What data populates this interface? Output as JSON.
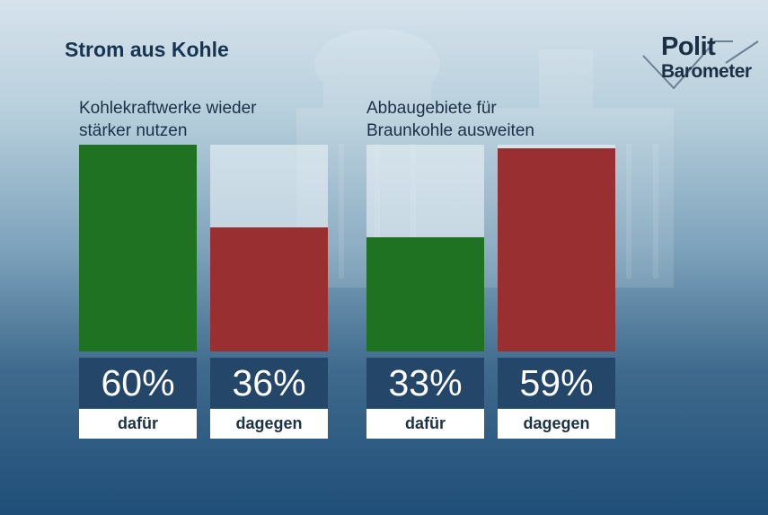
{
  "title": "Strom aus Kohle",
  "logo": {
    "line1": "Polit",
    "line2": "Barometer"
  },
  "colors": {
    "favor": "#1f7222",
    "against": "#9a2f31",
    "label_box": "#244669"
  },
  "chart_data": [
    {
      "type": "bar",
      "title": "Kohlekraftwerke wieder\nstärker nutzen",
      "categories": [
        "dafür",
        "dagegen"
      ],
      "values": [
        60,
        36
      ],
      "value_labels": [
        "60%",
        "36%"
      ],
      "ylim": [
        0,
        60
      ]
    },
    {
      "type": "bar",
      "title": "Abbaugebiete für\nBraunkohle ausweiten",
      "categories": [
        "dafür",
        "dagegen"
      ],
      "values": [
        33,
        59
      ],
      "value_labels": [
        "33%",
        "59%"
      ],
      "ylim": [
        0,
        60
      ]
    }
  ]
}
